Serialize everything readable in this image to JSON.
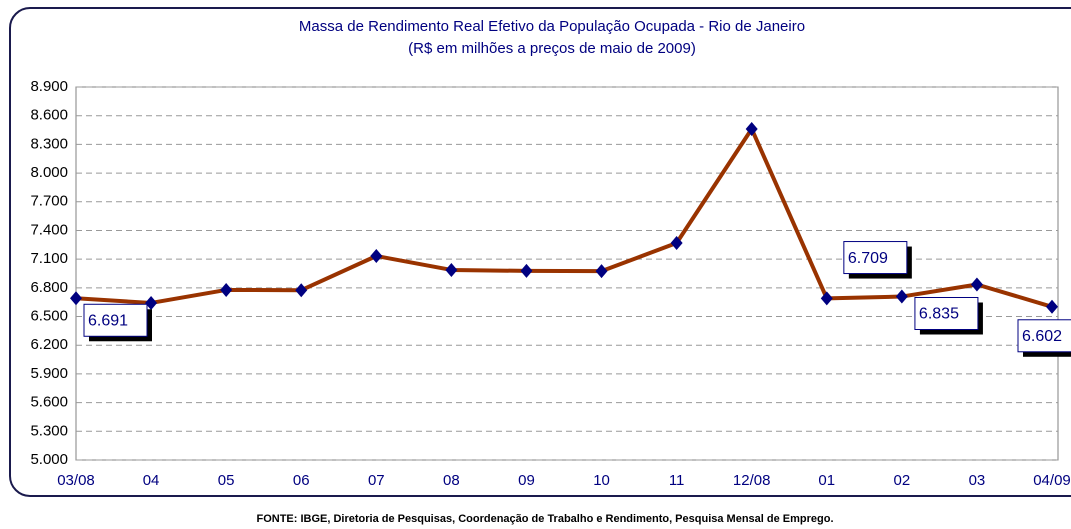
{
  "chart_data": {
    "type": "line",
    "title": "Massa de Rendimento Real Efetivo da População Ocupada -  Rio de Janeiro",
    "subtitle": "(R$ em milhões a preços de maio de 2009)",
    "source": "FONTE: IBGE, Diretoria de Pesquisas, Coordenação de Trabalho e Rendimento, Pesquisa Mensal de Emprego.",
    "categories": [
      "03/08",
      "04",
      "05",
      "06",
      "07",
      "08",
      "09",
      "10",
      "11",
      "12/08",
      "01",
      "02",
      "03",
      "04/09"
    ],
    "series": [
      {
        "name": "Massa de Rendimento",
        "color": "#993300",
        "marker_color": "#000080",
        "values": [
          6691,
          6642,
          6778,
          6775,
          7133,
          6987,
          6977,
          6975,
          7269,
          8461,
          6690,
          6709,
          6835,
          6602
        ],
        "value_labels": [
          "6.691",
          null,
          null,
          null,
          null,
          null,
          null,
          null,
          null,
          null,
          null,
          "6.709",
          "6.835",
          "6.602"
        ]
      }
    ],
    "ylim": [
      5000,
      8900
    ],
    "yticks": [
      {
        "value": 5000,
        "label": "5.000"
      },
      {
        "value": 5300,
        "label": "5.300"
      },
      {
        "value": 5600,
        "label": "5.600"
      },
      {
        "value": 5900,
        "label": "5.900"
      },
      {
        "value": 6200,
        "label": "6.200"
      },
      {
        "value": 6500,
        "label": "6.500"
      },
      {
        "value": 6800,
        "label": "6.800"
      },
      {
        "value": 7100,
        "label": "7.100"
      },
      {
        "value": 7400,
        "label": "7.400"
      },
      {
        "value": 7700,
        "label": "7.700"
      },
      {
        "value": 8000,
        "label": "8.000"
      },
      {
        "value": 8300,
        "label": "8.300"
      },
      {
        "value": 8600,
        "label": "8.600"
      },
      {
        "value": 8900,
        "label": "8.900"
      }
    ],
    "grid": true
  }
}
